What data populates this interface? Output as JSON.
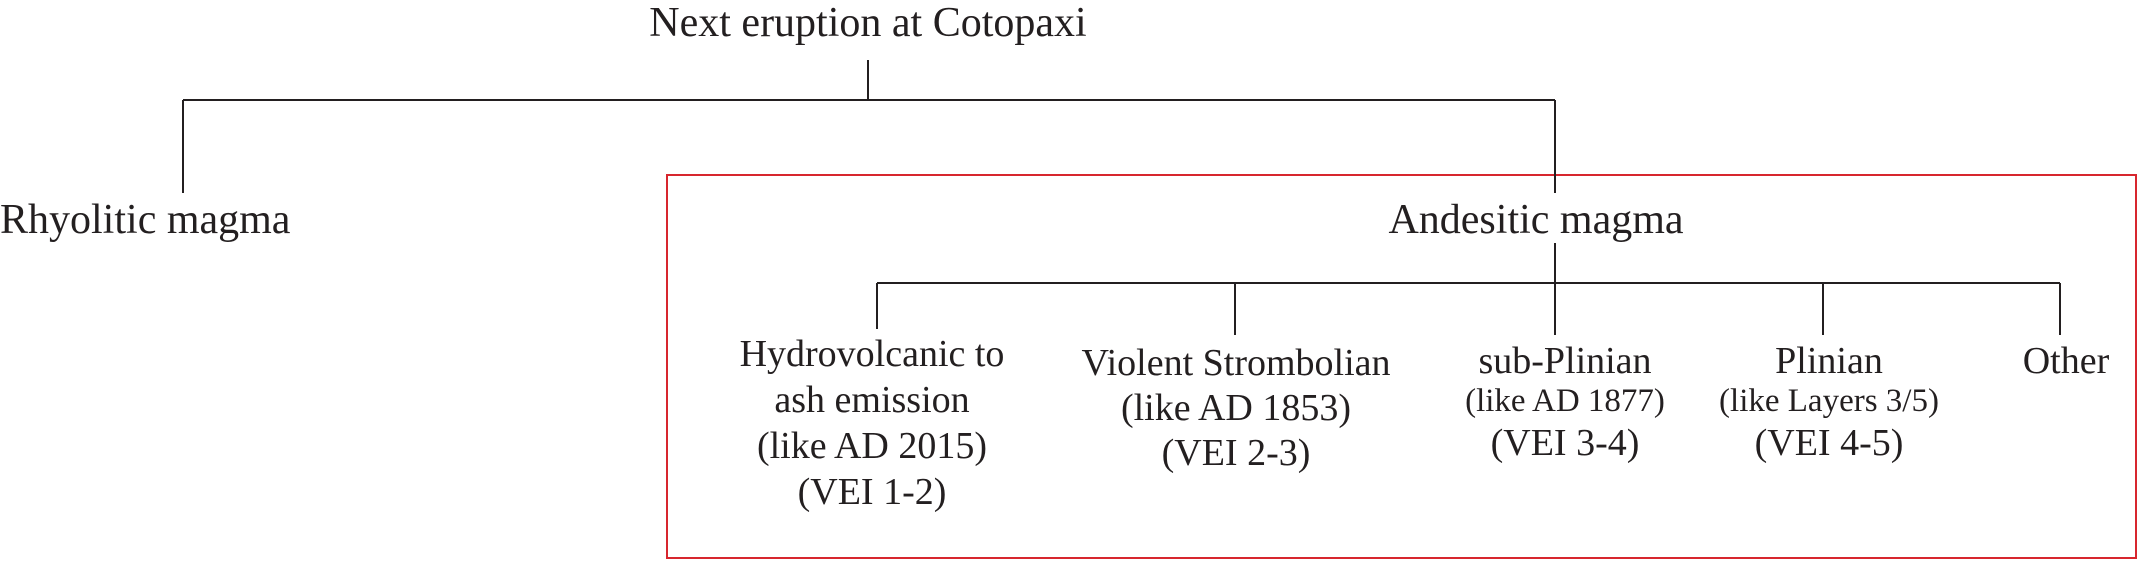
{
  "root": {
    "label": "Next eruption at Cotopaxi"
  },
  "branches": [
    {
      "label": "Rhyolitic magma"
    },
    {
      "label": "Andesitic magma"
    }
  ],
  "andesitic_children": [
    {
      "lines": [
        "Hydrovolcanic to",
        "ash emission",
        "(like AD 2015)",
        "(VEI 1-2)"
      ]
    },
    {
      "lines": [
        "Violent Strombolian",
        "(like AD 1853)",
        "(VEI 2-3)"
      ]
    },
    {
      "lines": [
        "sub-Plinian",
        "(like AD 1877)",
        "(VEI 3-4)"
      ]
    },
    {
      "lines": [
        "Plinian",
        "(like Layers 3/5)",
        "(VEI 4-5)"
      ]
    },
    {
      "lines": [
        "Other"
      ]
    }
  ],
  "colors": {
    "line": "#231f20",
    "highlight_box": "#d7262e",
    "text": "#231f20"
  }
}
